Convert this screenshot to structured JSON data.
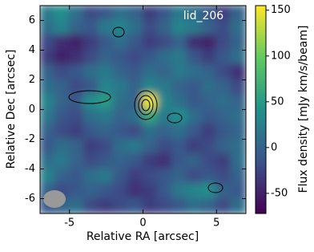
{
  "chart_data": {
    "type": "image",
    "annotation": "lid_206",
    "xlabel": "Relative RA [arcsec]",
    "ylabel": "Relative Dec [arcsec]",
    "colorbar_label": "Flux density [mJy km/s/beam]",
    "colormap": [
      "#440154",
      "#3b528b",
      "#21918c",
      "#5ec962",
      "#fde725"
    ],
    "x": [
      -6.5,
      -5.5,
      -4.5,
      -3.5,
      -2.5,
      -1.5,
      -0.5,
      0.5,
      1.5,
      2.5,
      3.5,
      4.5,
      5.5,
      6.5
    ],
    "y": [
      6.5,
      5.5,
      4.5,
      3.5,
      2.5,
      1.5,
      0.5,
      -0.5,
      -1.5,
      -2.5,
      -3.5,
      -4.5,
      -5.5,
      -6.5
    ],
    "values": [
      [
        20,
        40,
        10,
        -20,
        -10,
        10,
        0,
        -30,
        -10,
        20,
        10,
        -10,
        -30,
        0
      ],
      [
        10,
        30,
        0,
        -10,
        20,
        30,
        10,
        -20,
        0,
        30,
        20,
        0,
        -20,
        10
      ],
      [
        -20,
        -40,
        -50,
        -30,
        -10,
        10,
        -10,
        -30,
        -20,
        0,
        -40,
        -50,
        -20,
        0
      ],
      [
        -30,
        -50,
        -40,
        -20,
        0,
        -10,
        -20,
        -10,
        10,
        20,
        -10,
        -30,
        -10,
        10
      ],
      [
        0,
        -20,
        -10,
        10,
        20,
        0,
        -10,
        10,
        0,
        20,
        10,
        0,
        -20,
        -40
      ],
      [
        10,
        0,
        -20,
        -10,
        30,
        20,
        0,
        30,
        20,
        0,
        -10,
        10,
        0,
        -20
      ],
      [
        30,
        0,
        -10,
        40,
        50,
        10,
        0,
        150,
        30,
        10,
        -10,
        0,
        10,
        0
      ],
      [
        20,
        -10,
        -20,
        10,
        20,
        0,
        10,
        60,
        20,
        40,
        10,
        -10,
        0,
        10
      ],
      [
        0,
        -20,
        -30,
        -10,
        0,
        -10,
        -20,
        10,
        0,
        10,
        -10,
        -30,
        -10,
        0
      ],
      [
        -10,
        10,
        0,
        -30,
        -20,
        10,
        20,
        0,
        -20,
        -10,
        -30,
        -20,
        0,
        10
      ],
      [
        10,
        20,
        0,
        -20,
        -10,
        0,
        -10,
        -30,
        -40,
        -10,
        0,
        -20,
        -30,
        10
      ],
      [
        30,
        0,
        -10,
        10,
        20,
        -10,
        -30,
        -20,
        -10,
        0,
        -20,
        -10,
        -20,
        0
      ],
      [
        0,
        -20,
        -10,
        0,
        -10,
        -20,
        -40,
        -30,
        -10,
        20,
        30,
        40,
        0,
        -10
      ],
      [
        -10,
        0,
        10,
        -20,
        -30,
        -20,
        -10,
        -30,
        -20,
        -10,
        10,
        0,
        -20,
        10
      ]
    ],
    "xlim": [
      -7,
      7
    ],
    "ylim": [
      -7,
      7
    ],
    "xticks": [
      -5,
      0,
      5
    ],
    "yticks": [
      -6,
      -4,
      -2,
      0,
      2,
      4,
      6
    ],
    "clim": [
      -72,
      155
    ],
    "cticks": [
      -50,
      0,
      50,
      100,
      150
    ]
  }
}
